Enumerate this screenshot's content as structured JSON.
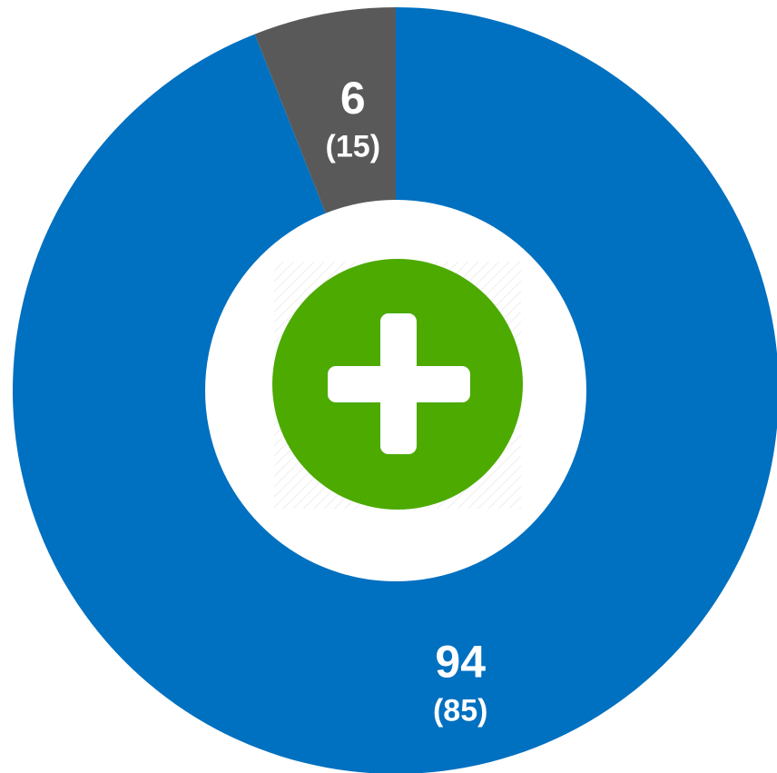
{
  "chart_data": {
    "type": "donut",
    "values": [
      94,
      6
    ],
    "colors": [
      "#0070c0",
      "#595959"
    ],
    "compare_values": [
      85,
      15
    ],
    "compare_value_labels": [
      "(85)",
      "(15)"
    ]
  }
}
